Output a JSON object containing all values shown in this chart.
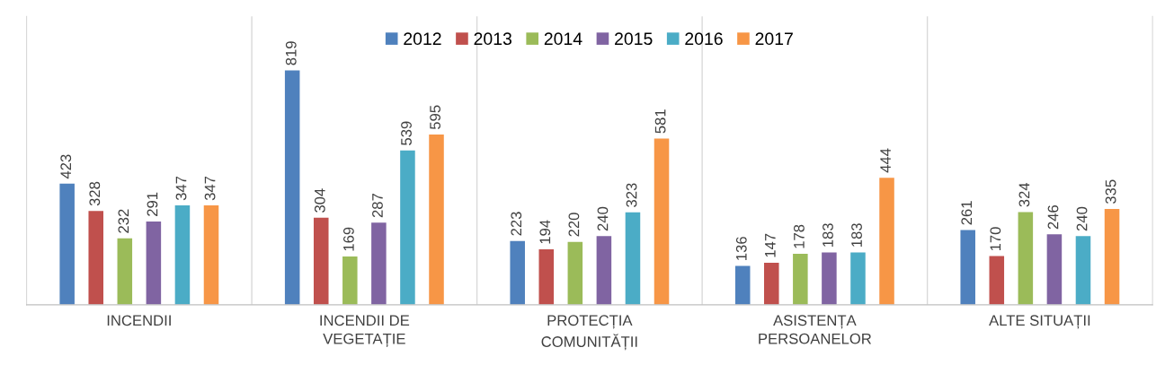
{
  "chart_data": {
    "type": "bar",
    "categories": [
      "INCENDII",
      "INCENDII DE VEGETAȚIE",
      "PROTECȚIA COMUNITĂȚII",
      "ASISTENȚA PERSOANELOR",
      "ALTE SITUAȚII"
    ],
    "series": [
      {
        "name": "2012",
        "color": "#4f81bd",
        "values": [
          423,
          819,
          223,
          136,
          261
        ]
      },
      {
        "name": "2013",
        "color": "#c0504d",
        "values": [
          328,
          304,
          194,
          147,
          170
        ]
      },
      {
        "name": "2014",
        "color": "#9bbb59",
        "values": [
          232,
          169,
          220,
          178,
          324
        ]
      },
      {
        "name": "2015",
        "color": "#8064a2",
        "values": [
          291,
          287,
          240,
          183,
          246
        ]
      },
      {
        "name": "2016",
        "color": "#4bacc6",
        "values": [
          347,
          539,
          323,
          183,
          240
        ]
      },
      {
        "name": "2017",
        "color": "#f79646",
        "values": [
          347,
          595,
          581,
          444,
          335
        ]
      }
    ],
    "data_labels": true,
    "grid": "x",
    "legend": "top"
  }
}
